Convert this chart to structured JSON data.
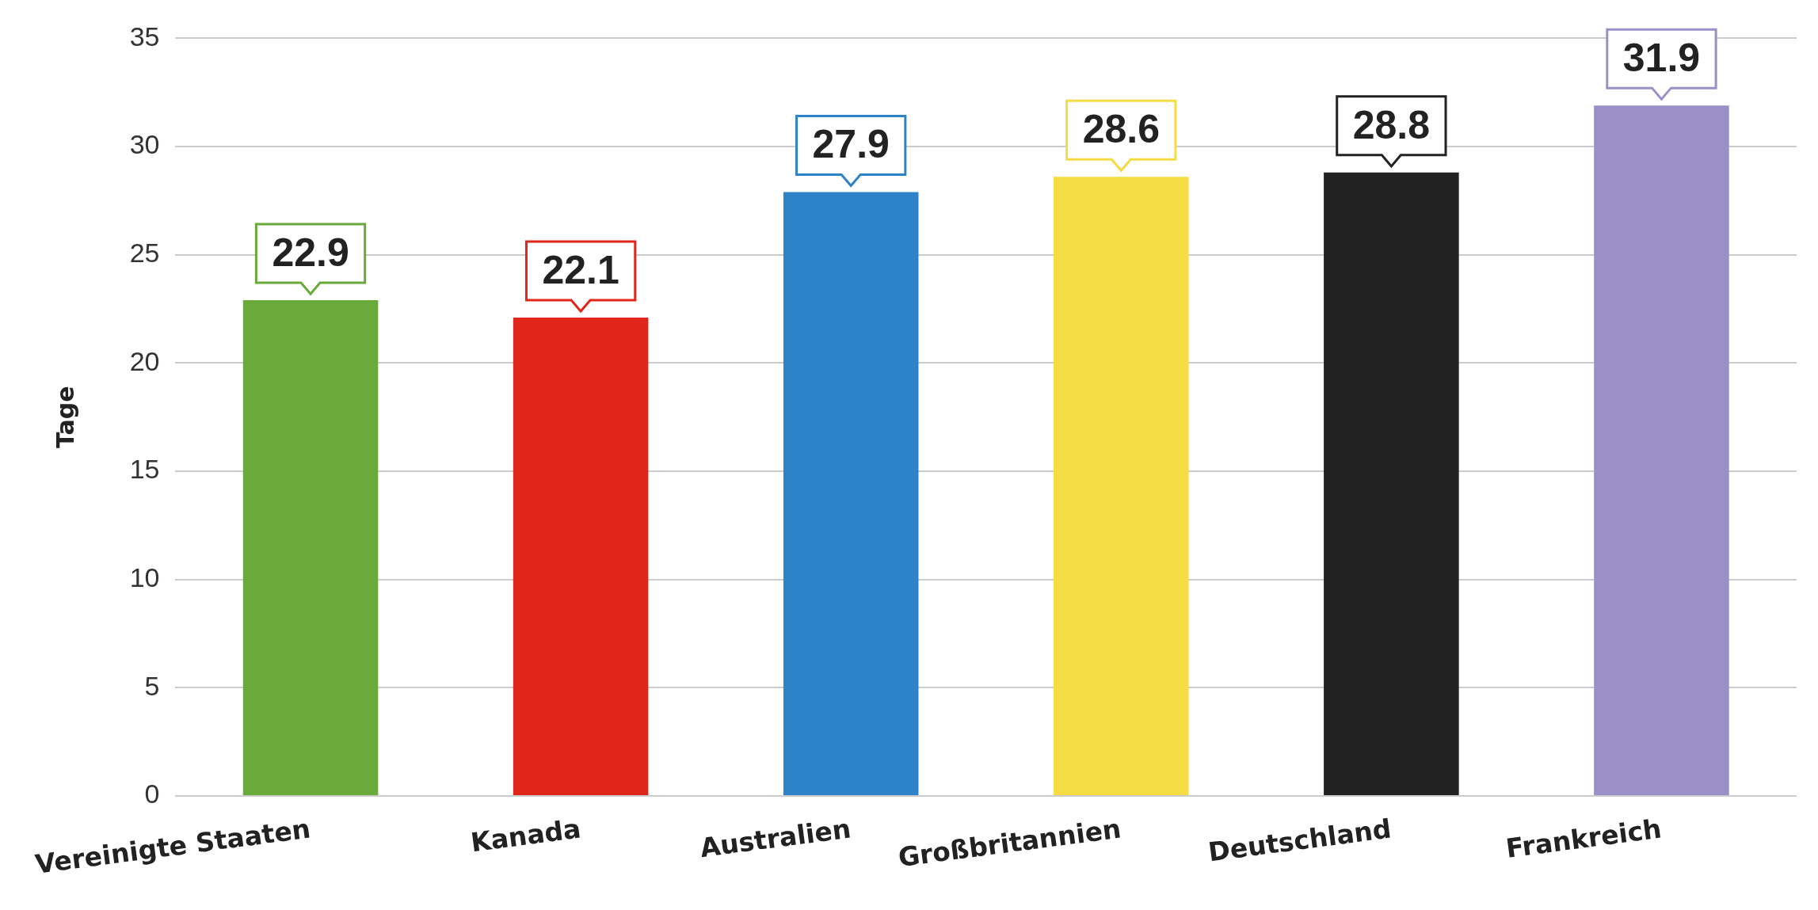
{
  "chart_data": {
    "type": "bar",
    "ylabel": "Tage",
    "categories": [
      "Vereinigte Staaten",
      "Kanada",
      "Australien",
      "Großbritannien",
      "Deutschland",
      "Frankreich"
    ],
    "values": [
      22.9,
      22.1,
      27.9,
      28.6,
      28.8,
      31.9
    ],
    "colors": [
      "#6aaa3a",
      "#e0261b",
      "#2e83c8",
      "#f5dc45",
      "#222222",
      "#9b8fc8"
    ],
    "ylim": [
      0,
      35
    ],
    "yticks": [
      0,
      5,
      10,
      15,
      20,
      25,
      30,
      35
    ],
    "grid": "y",
    "legend": false,
    "data_labels": true
  }
}
